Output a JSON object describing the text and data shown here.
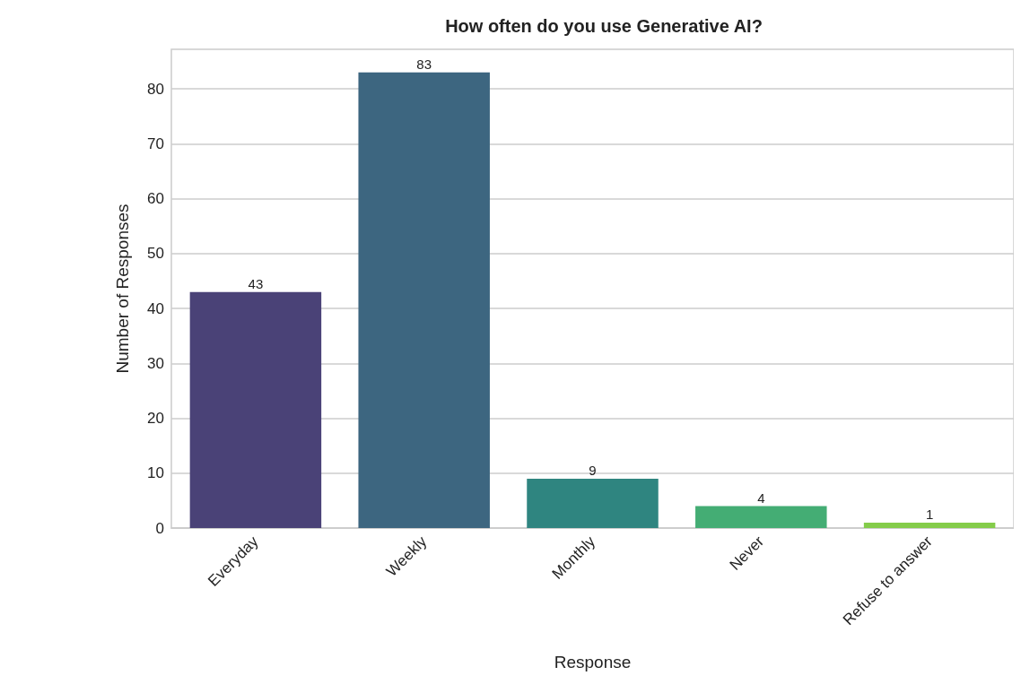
{
  "chart_data": {
    "type": "bar",
    "title": "How often do you use Generative AI?",
    "xlabel": "Response",
    "ylabel": "Number of Responses",
    "categories": [
      "Everyday",
      "Weekly",
      "Monthly",
      "Never",
      "Refuse to answer"
    ],
    "values": [
      43,
      83,
      9,
      4,
      1
    ],
    "colors": [
      "#4a4277",
      "#3d6680",
      "#2f8580",
      "#44ad74",
      "#84cc4a"
    ],
    "ylim": [
      0,
      87.2
    ],
    "yticks": [
      0,
      10,
      20,
      30,
      40,
      50,
      60,
      70,
      80
    ],
    "grid": "y",
    "data_labels": true
  }
}
